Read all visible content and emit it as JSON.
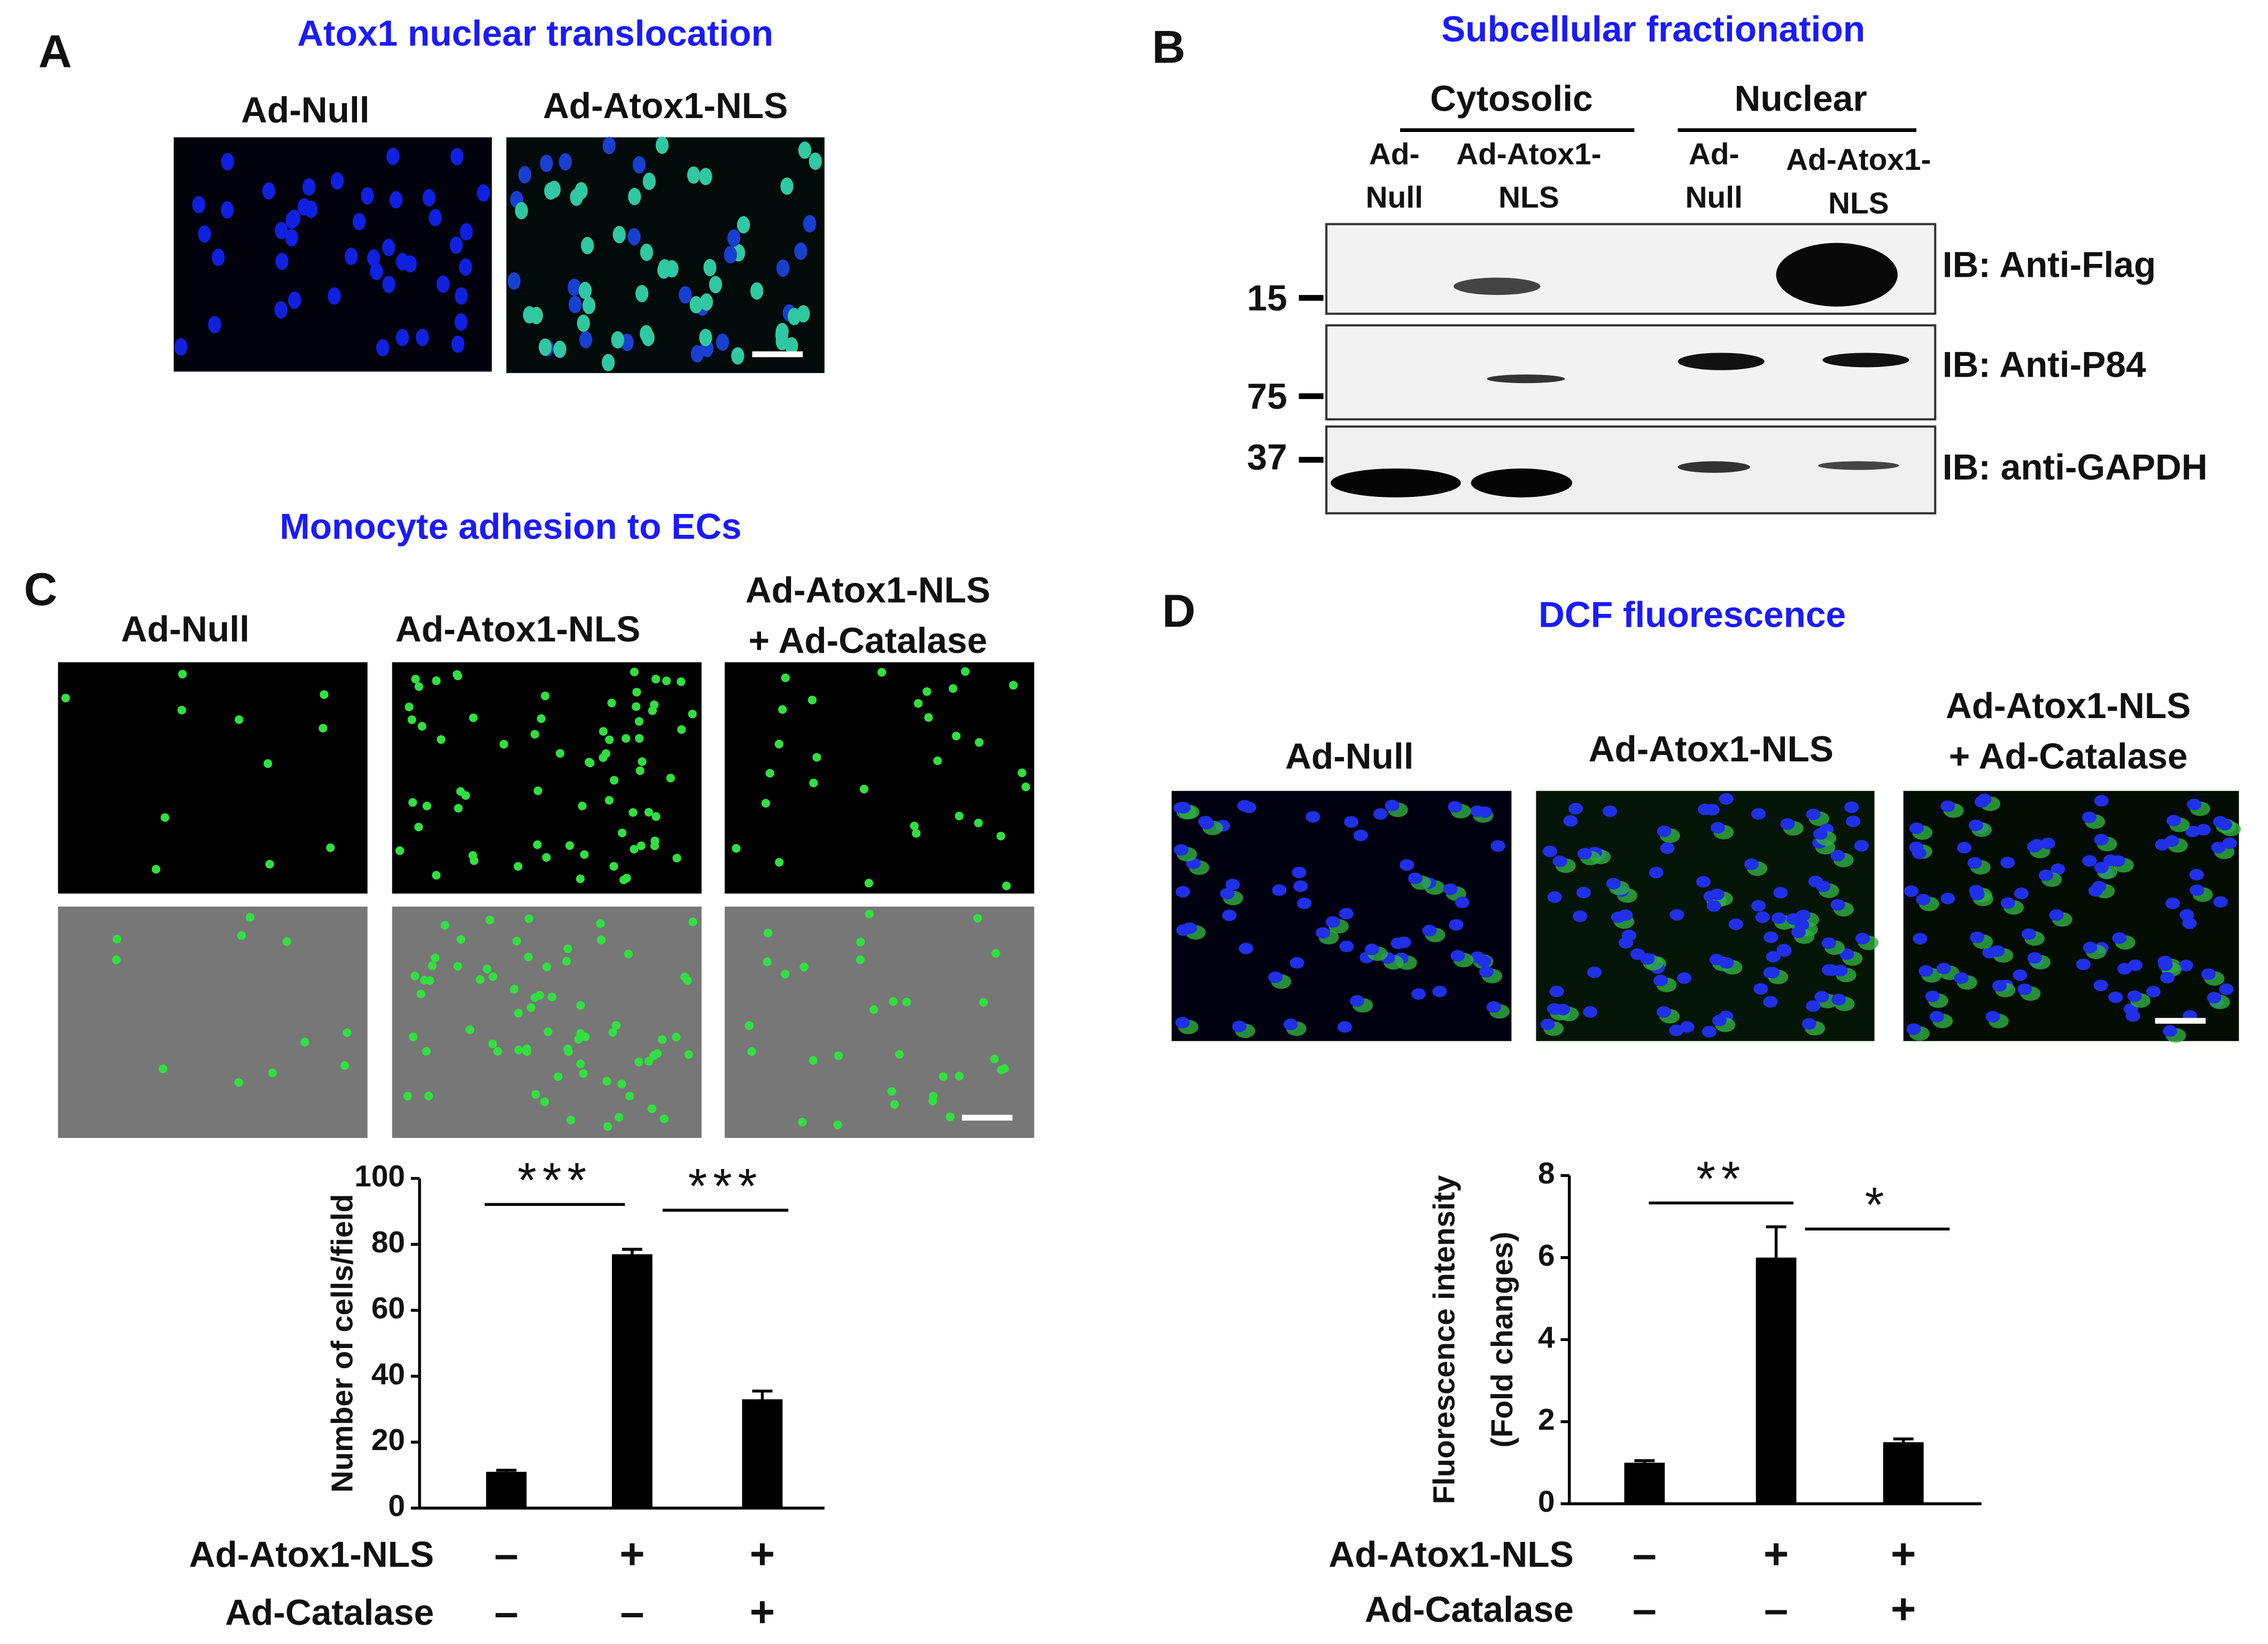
{
  "panels": {
    "A": {
      "letter": "A",
      "title": "Atox1 nuclear translocation",
      "labels": [
        "Ad-Null",
        "Ad-Atox1-NLS"
      ]
    },
    "B": {
      "letter": "B",
      "title": "Subcellular fractionation",
      "groups": [
        "Cytosolic",
        "Nuclear"
      ],
      "lanes": [
        [
          "Ad-",
          "Null"
        ],
        [
          "Ad-Atox1-",
          "NLS"
        ],
        [
          "Ad-",
          "Null"
        ],
        [
          "Ad-Atox1-",
          "NLS"
        ]
      ],
      "markers": [
        "15",
        "75",
        "37"
      ],
      "blots": [
        "IB: Anti-Flag",
        "IB: Anti-P84",
        "IB: anti-GAPDH"
      ]
    },
    "C": {
      "letter": "C",
      "title": "Monocyte adhesion to ECs",
      "labels": [
        [
          "Ad-Null"
        ],
        [
          "Ad-Atox1-NLS"
        ],
        [
          "Ad-Atox1-NLS",
          "+ Ad-Catalase"
        ]
      ]
    },
    "D": {
      "letter": "D",
      "title": "DCF fluorescence",
      "labels": [
        [
          "Ad-Null"
        ],
        [
          "Ad-Atox1-NLS"
        ],
        [
          "Ad-Atox1-NLS",
          "+ Ad-Catalase"
        ]
      ]
    }
  },
  "chart_data": [
    {
      "type": "bar",
      "ylabel": "Number of cells/field",
      "values": [
        11,
        77,
        33
      ],
      "errors": [
        0.5,
        1.5,
        2.5
      ],
      "color": "#000000",
      "ylim": [
        0,
        100
      ],
      "yticks": [
        0,
        20,
        40,
        60,
        80,
        100
      ],
      "annotations": [
        "***",
        "***"
      ],
      "treatments": [
        {
          "name": "Ad-Atox1-NLS",
          "signs": [
            "–",
            "+",
            "+"
          ]
        },
        {
          "name": "Ad-Catalase",
          "signs": [
            "–",
            "–",
            "+"
          ]
        }
      ]
    },
    {
      "type": "bar",
      "ylabel": [
        "Fluorescence intensity",
        "(Fold changes)"
      ],
      "values": [
        1.0,
        6.0,
        1.5
      ],
      "errors": [
        0.05,
        0.75,
        0.08
      ],
      "color": "#000000",
      "ylim": [
        0,
        8
      ],
      "yticks": [
        0,
        2,
        4,
        6,
        8
      ],
      "annotations": [
        "**",
        "*"
      ],
      "treatments": [
        {
          "name": "Ad-Atox1-NLS",
          "signs": [
            "–",
            "+",
            "+"
          ]
        },
        {
          "name": "Ad-Catalase",
          "signs": [
            "–",
            "–",
            "+"
          ]
        }
      ]
    }
  ]
}
